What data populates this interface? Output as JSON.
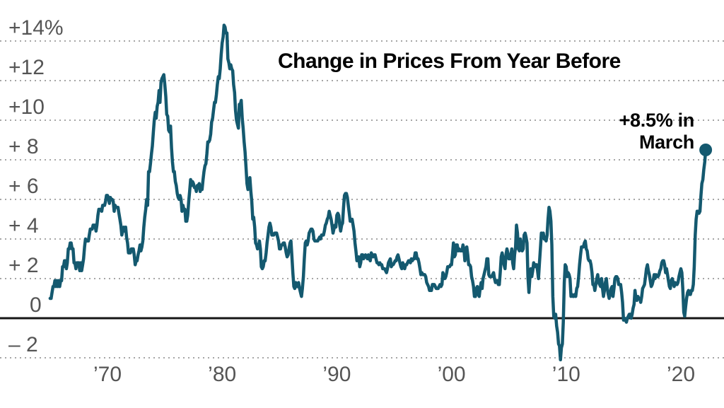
{
  "chart_data": {
    "type": "line",
    "title": "Change in Prices From Year Before",
    "annotation": {
      "label": "+8.5% in March",
      "value": 8.5,
      "period": "March"
    },
    "unit": "percent change in prices from year before",
    "frequency": "monthly",
    "start_year": 1965,
    "x_range": [
      "1965-01",
      "2022-03"
    ],
    "ylim": [
      -3,
      15.6
    ],
    "grid": "dotted horizontal gridlines, solid zero line, no vertical grid",
    "legend_position": "none",
    "line_color": "#14596f",
    "grid_color": "#a6a6a6",
    "zero_line_color": "#161616",
    "label_color": "#555555",
    "title_color": "#000000",
    "y_ticks": [
      {
        "value": 14,
        "label": "+14%"
      },
      {
        "value": 12,
        "label": "+12"
      },
      {
        "value": 10,
        "label": "+10"
      },
      {
        "value": 8,
        "label": "+ 8"
      },
      {
        "value": 6,
        "label": "+ 6"
      },
      {
        "value": 4,
        "label": "+ 4"
      },
      {
        "value": 2,
        "label": "+ 2"
      },
      {
        "value": 0,
        "label": "0"
      },
      {
        "value": -2,
        "label": "– 2"
      }
    ],
    "x_ticks": [
      {
        "year": 1970,
        "label": "’70"
      },
      {
        "year": 1980,
        "label": "’80"
      },
      {
        "year": 1990,
        "label": "’90"
      },
      {
        "year": 2000,
        "label": "’00"
      },
      {
        "year": 2010,
        "label": "’10"
      },
      {
        "year": 2020,
        "label": "’20"
      }
    ],
    "values_by_year": [
      [
        1.0,
        1.0,
        1.3,
        1.6,
        1.6,
        1.9,
        1.6,
        1.9,
        1.6,
        1.9,
        1.6,
        1.9
      ],
      [
        1.9,
        2.6,
        2.6,
        2.9,
        2.9,
        2.5,
        2.8,
        3.5,
        3.5,
        3.8,
        3.8,
        3.5
      ],
      [
        3.5,
        2.8,
        2.8,
        2.5,
        2.8,
        2.8,
        2.8,
        2.4,
        2.8,
        2.4,
        2.7,
        3.0
      ],
      [
        3.6,
        4.0,
        3.9,
        3.9,
        3.9,
        4.2,
        4.5,
        4.5,
        4.5,
        4.7,
        4.7,
        4.7
      ],
      [
        4.4,
        4.7,
        5.2,
        5.5,
        5.5,
        5.5,
        5.4,
        5.7,
        5.7,
        5.7,
        5.9,
        6.2
      ],
      [
        6.2,
        6.1,
        5.8,
        6.1,
        6.0,
        6.0,
        5.9,
        5.4,
        5.7,
        5.6,
        5.6,
        5.6
      ],
      [
        5.3,
        5.0,
        4.7,
        4.2,
        4.4,
        4.6,
        4.4,
        4.6,
        4.1,
        3.8,
        3.3,
        3.3
      ],
      [
        3.3,
        3.5,
        3.5,
        3.5,
        3.2,
        2.7,
        2.9,
        2.9,
        3.2,
        3.4,
        3.7,
        3.4
      ],
      [
        3.6,
        3.9,
        4.6,
        5.1,
        5.5,
        6.0,
        5.7,
        7.4,
        7.4,
        7.8,
        8.3,
        8.7
      ],
      [
        9.4,
        10.0,
        10.4,
        10.1,
        10.7,
        10.9,
        11.5,
        10.9,
        11.9,
        12.1,
        12.2,
        12.3
      ],
      [
        11.8,
        11.2,
        10.3,
        10.2,
        9.5,
        9.4,
        9.7,
        8.6,
        7.9,
        7.4,
        7.4,
        6.9
      ],
      [
        6.7,
        6.3,
        6.1,
        6.0,
        6.2,
        6.0,
        5.4,
        5.7,
        5.5,
        5.5,
        4.9,
        4.9
      ],
      [
        5.2,
        5.9,
        6.4,
        7.0,
        6.7,
        6.9,
        6.8,
        6.6,
        6.6,
        6.4,
        6.7,
        6.7
      ],
      [
        6.8,
        6.4,
        6.6,
        6.5,
        7.0,
        7.4,
        7.7,
        7.8,
        8.3,
        8.9,
        8.9,
        9.0
      ],
      [
        9.3,
        9.9,
        10.1,
        10.5,
        10.9,
        10.9,
        11.3,
        11.8,
        12.2,
        12.1,
        12.6,
        13.3
      ],
      [
        13.9,
        14.2,
        14.8,
        14.7,
        14.4,
        14.4,
        13.1,
        12.9,
        12.6,
        12.8,
        12.6,
        12.5
      ],
      [
        11.8,
        11.4,
        10.5,
        10.0,
        9.8,
        9.6,
        10.8,
        10.8,
        11.0,
        10.1,
        9.6,
        8.9
      ],
      [
        8.4,
        7.6,
        6.8,
        6.5,
        6.7,
        7.1,
        6.4,
        5.9,
        5.0,
        5.1,
        4.6,
        3.8
      ],
      [
        3.7,
        3.5,
        3.6,
        3.9,
        3.5,
        2.6,
        2.5,
        2.6,
        2.9,
        2.9,
        3.3,
        3.8
      ],
      [
        4.2,
        4.6,
        4.8,
        4.6,
        4.2,
        4.2,
        4.2,
        4.3,
        4.3,
        4.3,
        4.1,
        3.9
      ],
      [
        3.5,
        3.5,
        3.7,
        3.7,
        3.8,
        3.8,
        3.6,
        3.3,
        3.1,
        3.2,
        3.5,
        3.8
      ],
      [
        3.9,
        3.1,
        2.3,
        1.6,
        1.5,
        1.8,
        1.6,
        1.6,
        1.8,
        1.5,
        1.3,
        1.1
      ],
      [
        1.5,
        2.1,
        3.0,
        3.8,
        3.9,
        3.7,
        3.9,
        4.3,
        4.4,
        4.5,
        4.5,
        4.4
      ],
      [
        4.0,
        3.9,
        3.9,
        3.9,
        3.9,
        4.0,
        4.1,
        4.0,
        4.2,
        4.2,
        4.2,
        4.4
      ],
      [
        4.7,
        4.8,
        5.0,
        5.1,
        5.4,
        5.2,
        5.0,
        4.7,
        4.3,
        4.5,
        4.7,
        4.6
      ],
      [
        5.2,
        5.3,
        5.2,
        4.7,
        4.4,
        4.7,
        4.8,
        5.6,
        6.2,
        6.3,
        6.3,
        6.1
      ],
      [
        5.7,
        5.3,
        4.9,
        4.9,
        5.0,
        4.7,
        4.4,
        3.8,
        3.4,
        2.9,
        3.0,
        3.1
      ],
      [
        2.6,
        2.8,
        3.2,
        3.2,
        3.0,
        3.1,
        3.2,
        3.1,
        3.0,
        3.2,
        3.0,
        2.9
      ],
      [
        3.3,
        3.2,
        3.1,
        3.2,
        3.2,
        3.0,
        2.8,
        2.8,
        2.7,
        2.8,
        2.7,
        2.7
      ],
      [
        2.5,
        2.5,
        2.5,
        2.4,
        2.3,
        2.5,
        2.8,
        2.9,
        3.0,
        2.6,
        2.7,
        2.7
      ],
      [
        2.8,
        2.9,
        2.9,
        3.1,
        3.2,
        3.0,
        2.8,
        2.6,
        2.5,
        2.8,
        2.6,
        2.5
      ],
      [
        2.7,
        2.7,
        2.8,
        2.9,
        2.9,
        2.8,
        3.0,
        2.9,
        3.0,
        3.0,
        3.3,
        3.3
      ],
      [
        3.0,
        3.0,
        2.8,
        2.5,
        2.2,
        2.3,
        2.2,
        2.2,
        2.2,
        2.1,
        1.8,
        1.7
      ],
      [
        1.6,
        1.4,
        1.4,
        1.4,
        1.7,
        1.7,
        1.7,
        1.6,
        1.5,
        1.5,
        1.5,
        1.6
      ],
      [
        1.7,
        1.6,
        1.7,
        2.3,
        2.1,
        2.0,
        2.1,
        2.3,
        2.6,
        2.6,
        2.6,
        2.7
      ],
      [
        2.7,
        3.2,
        3.8,
        3.1,
        3.2,
        3.7,
        3.7,
        3.4,
        3.5,
        3.4,
        3.4,
        3.4
      ],
      [
        3.7,
        3.5,
        2.9,
        3.3,
        3.6,
        3.2,
        2.7,
        2.7,
        2.6,
        2.1,
        1.9,
        1.6
      ],
      [
        1.1,
        1.1,
        1.5,
        1.6,
        1.2,
        1.1,
        1.5,
        1.8,
        1.5,
        2.0,
        2.2,
        2.4
      ],
      [
        2.6,
        3.0,
        3.0,
        2.2,
        2.1,
        2.1,
        2.1,
        2.2,
        2.3,
        2.0,
        1.8,
        1.9
      ],
      [
        1.9,
        1.7,
        1.7,
        2.3,
        3.1,
        3.3,
        3.0,
        2.7,
        2.5,
        3.2,
        3.5,
        3.3
      ],
      [
        3.0,
        3.0,
        3.1,
        3.5,
        2.8,
        2.5,
        3.2,
        3.6,
        4.7,
        4.3,
        3.5,
        3.4
      ],
      [
        4.0,
        3.6,
        3.4,
        3.5,
        4.2,
        4.3,
        4.1,
        3.8,
        2.1,
        1.3,
        2.0,
        2.5
      ],
      [
        2.1,
        2.4,
        2.8,
        2.6,
        2.7,
        2.7,
        2.4,
        2.0,
        2.8,
        3.5,
        4.3,
        4.1
      ],
      [
        4.3,
        4.0,
        4.0,
        3.9,
        4.2,
        5.0,
        5.6,
        5.4,
        4.9,
        3.7,
        1.1,
        0.1
      ],
      [
        0.0,
        0.2,
        -0.4,
        -0.7,
        -1.3,
        -1.4,
        -2.1,
        -1.5,
        -1.3,
        -0.2,
        1.8,
        2.7
      ],
      [
        2.6,
        2.1,
        2.3,
        2.2,
        2.0,
        1.1,
        1.2,
        1.1,
        1.1,
        1.2,
        1.1,
        1.5
      ],
      [
        1.6,
        2.1,
        2.7,
        3.2,
        3.6,
        3.6,
        3.6,
        3.8,
        3.9,
        3.5,
        3.4,
        3.0
      ],
      [
        2.9,
        2.9,
        2.7,
        2.3,
        1.7,
        1.7,
        1.4,
        1.7,
        2.0,
        2.2,
        1.8,
        1.7
      ],
      [
        1.6,
        2.0,
        1.5,
        1.1,
        1.4,
        1.8,
        2.0,
        1.5,
        1.2,
        1.0,
        1.2,
        1.5
      ],
      [
        1.6,
        1.1,
        1.5,
        2.0,
        2.1,
        2.1,
        2.0,
        1.7,
        1.7,
        1.7,
        1.3,
        0.8
      ],
      [
        -0.1,
        0.0,
        -0.1,
        -0.2,
        0.0,
        0.1,
        0.2,
        0.2,
        0.0,
        0.2,
        0.5,
        0.7
      ],
      [
        1.4,
        1.0,
        0.9,
        1.1,
        1.0,
        1.0,
        0.8,
        1.1,
        1.5,
        1.6,
        1.7,
        2.1
      ],
      [
        2.5,
        2.7,
        2.4,
        2.2,
        1.9,
        1.6,
        1.7,
        1.9,
        2.2,
        2.0,
        2.2,
        2.1
      ],
      [
        2.1,
        2.2,
        2.4,
        2.5,
        2.8,
        2.9,
        2.9,
        2.7,
        2.3,
        2.5,
        2.2,
        1.9
      ],
      [
        1.6,
        1.5,
        1.9,
        2.0,
        1.8,
        1.6,
        1.8,
        1.7,
        1.7,
        1.8,
        2.1,
        2.3
      ],
      [
        2.5,
        2.3,
        1.5,
        0.3,
        0.1,
        0.6,
        1.0,
        1.3,
        1.4,
        1.2,
        1.2,
        1.4
      ],
      [
        1.4,
        1.7,
        2.6,
        4.2,
        5.0,
        5.4,
        5.4,
        5.3,
        5.4,
        6.2,
        6.8,
        7.0
      ],
      [
        7.5,
        7.9,
        8.5
      ]
    ]
  }
}
